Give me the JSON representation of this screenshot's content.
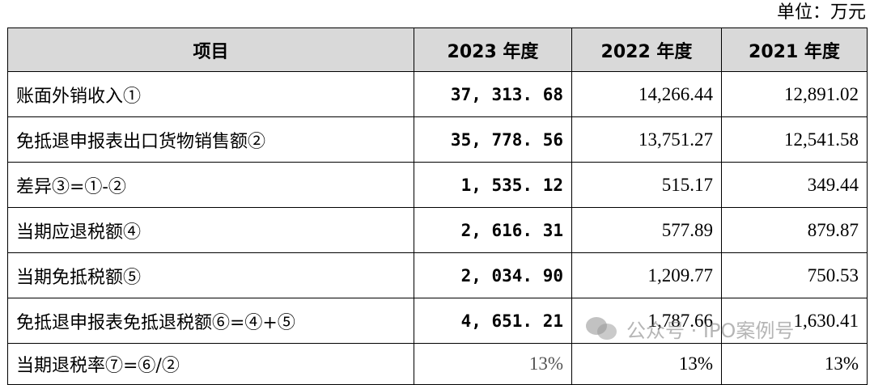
{
  "unit_label": "单位：万元",
  "table": {
    "headers": [
      "项目",
      "2023 年度",
      "2022 年度",
      "2021 年度"
    ],
    "rows": [
      {
        "label": "账面外销收入①",
        "v2023": "37, 313. 68",
        "v2022": "14,266.44",
        "v2021": "12,891.02"
      },
      {
        "label": "免抵退申报表出口货物销售额②",
        "v2023": "35, 778. 56",
        "v2022": "13,751.27",
        "v2021": "12,541.58"
      },
      {
        "label": "差异③=①-②",
        "v2023": "1, 535. 12",
        "v2022": "515.17",
        "v2021": "349.44"
      },
      {
        "label": "当期应退税额④",
        "v2023": "2, 616. 31",
        "v2022": "577.89",
        "v2021": "879.87"
      },
      {
        "label": "当期免抵税额⑤",
        "v2023": "2, 034. 90",
        "v2022": "1,209.77",
        "v2021": "750.53"
      },
      {
        "label": "免抵退申报表免抵退税额⑥=④+⑤",
        "v2023": "4, 651. 21",
        "v2022": "1,787.66",
        "v2021": "1,630.41"
      },
      {
        "label": "当期退税率⑦=⑥/②",
        "v2023": "13%",
        "v2022": "13%",
        "v2021": "13%"
      }
    ]
  },
  "watermark": {
    "text": "公众号 · IPO案例号",
    "icon": "wechat-logo-icon"
  }
}
